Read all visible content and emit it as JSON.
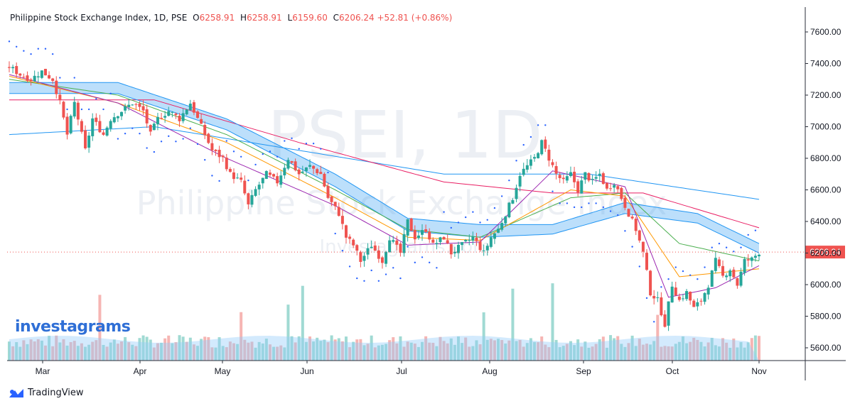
{
  "header": {
    "symbol": "Philippine Stock Exchange Index, 1D, PSE",
    "open_label": "O",
    "open": "6258.91",
    "high_label": "H",
    "high": "6258.91",
    "low_label": "L",
    "low": "6159.60",
    "close_label": "C",
    "close": "6206.24",
    "change": "+52.81 (+0.86%)"
  },
  "watermark": {
    "big": "PSEI, 1D",
    "mid": "Philippine Stock Exchange Index",
    "small": "Investagrams.com"
  },
  "brand": {
    "tradingview": "TradingView",
    "investagrams": "investagrams"
  },
  "colors": {
    "up": "#26a69a",
    "down": "#ef5350",
    "band": "#2196f3",
    "grid": "#f0f3fa"
  },
  "chart_data": {
    "type": "candlestick",
    "y_axis": {
      "min": 5500,
      "max": 7700,
      "ticks": [
        5600,
        5800,
        6000,
        6200,
        6400,
        6600,
        6800,
        7000,
        7200,
        7400,
        7600
      ],
      "position": "right"
    },
    "x_axis": {
      "labels": [
        "Mar",
        "Apr",
        "May",
        "Jun",
        "Jul",
        "Aug",
        "Sep",
        "Oct",
        "Nov"
      ]
    },
    "last_price": "6206.24",
    "close_anchors": [
      [
        0,
        7380
      ],
      [
        3,
        7330
      ],
      [
        6,
        7300
      ],
      [
        9,
        7350
      ],
      [
        12,
        7300
      ],
      [
        14,
        7150
      ],
      [
        16,
        6950
      ],
      [
        18,
        7150
      ],
      [
        19,
        7050
      ],
      [
        21,
        6850
      ],
      [
        23,
        7050
      ],
      [
        26,
        6950
      ],
      [
        28,
        7050
      ],
      [
        31,
        7100
      ],
      [
        34,
        7150
      ],
      [
        37,
        7100
      ],
      [
        39,
        6950
      ],
      [
        41,
        7050
      ],
      [
        44,
        7100
      ],
      [
        47,
        7050
      ],
      [
        50,
        7150
      ],
      [
        53,
        7000
      ],
      [
        56,
        6850
      ],
      [
        59,
        6800
      ],
      [
        61,
        6700
      ],
      [
        64,
        6650
      ],
      [
        66,
        6500
      ],
      [
        68,
        6600
      ],
      [
        71,
        6700
      ],
      [
        74,
        6650
      ],
      [
        77,
        6800
      ],
      [
        80,
        6700
      ],
      [
        83,
        6750
      ],
      [
        86,
        6700
      ],
      [
        88,
        6550
      ],
      [
        91,
        6450
      ],
      [
        93,
        6300
      ],
      [
        95,
        6250
      ],
      [
        97,
        6150
      ],
      [
        100,
        6250
      ],
      [
        103,
        6150
      ],
      [
        105,
        6300
      ],
      [
        108,
        6200
      ],
      [
        110,
        6400
      ],
      [
        112,
        6300
      ],
      [
        115,
        6350
      ],
      [
        117,
        6250
      ],
      [
        120,
        6300
      ],
      [
        122,
        6200
      ],
      [
        125,
        6250
      ],
      [
        128,
        6300
      ],
      [
        131,
        6200
      ],
      [
        133,
        6300
      ],
      [
        135,
        6350
      ],
      [
        137,
        6450
      ],
      [
        139,
        6550
      ],
      [
        141,
        6700
      ],
      [
        143,
        6750
      ],
      [
        145,
        6800
      ],
      [
        147,
        6900
      ],
      [
        149,
        6800
      ],
      [
        151,
        6700
      ],
      [
        153,
        6650
      ],
      [
        155,
        6700
      ],
      [
        157,
        6600
      ],
      [
        159,
        6700
      ],
      [
        161,
        6650
      ],
      [
        163,
        6700
      ],
      [
        165,
        6600
      ],
      [
        167,
        6650
      ],
      [
        169,
        6550
      ],
      [
        171,
        6450
      ],
      [
        173,
        6350
      ],
      [
        175,
        6200
      ],
      [
        177,
        5950
      ],
      [
        179,
        5900
      ],
      [
        181,
        5750
      ],
      [
        183,
        6000
      ],
      [
        185,
        5900
      ],
      [
        187,
        5950
      ],
      [
        189,
        5850
      ],
      [
        191,
        5900
      ],
      [
        193,
        6000
      ],
      [
        195,
        6150
      ],
      [
        197,
        6050
      ],
      [
        199,
        6100
      ],
      [
        201,
        6000
      ],
      [
        203,
        6150
      ],
      [
        205,
        6160
      ],
      [
        207,
        6206
      ]
    ],
    "moving_averages": [
      {
        "color": "#2196f3",
        "anchors": [
          [
            0,
            6950
          ],
          [
            40,
            7000
          ],
          [
            80,
            6850
          ],
          [
            120,
            6700
          ],
          [
            160,
            6700
          ],
          [
            207,
            6540
          ]
        ]
      },
      {
        "color": "#e91e63",
        "anchors": [
          [
            0,
            7170
          ],
          [
            40,
            7170
          ],
          [
            80,
            6900
          ],
          [
            120,
            6650
          ],
          [
            150,
            6580
          ],
          [
            175,
            6580
          ],
          [
            207,
            6360
          ]
        ]
      },
      {
        "color": "#2196f3",
        "anchors": [
          [
            0,
            7280
          ],
          [
            30,
            7280
          ],
          [
            60,
            7050
          ],
          [
            90,
            6700
          ],
          [
            110,
            6420
          ],
          [
            130,
            6380
          ],
          [
            150,
            6380
          ],
          [
            170,
            6520
          ],
          [
            190,
            6450
          ],
          [
            207,
            6260
          ]
        ]
      },
      {
        "color": "#2196f3",
        "anchors": [
          [
            0,
            7210
          ],
          [
            30,
            7210
          ],
          [
            60,
            6980
          ],
          [
            90,
            6620
          ],
          [
            110,
            6340
          ],
          [
            130,
            6300
          ],
          [
            150,
            6320
          ],
          [
            170,
            6450
          ],
          [
            190,
            6390
          ],
          [
            207,
            6200
          ]
        ]
      },
      {
        "color": "#4caf50",
        "anchors": [
          [
            0,
            7300
          ],
          [
            30,
            7200
          ],
          [
            60,
            6950
          ],
          [
            90,
            6600
          ],
          [
            110,
            6350
          ],
          [
            130,
            6300
          ],
          [
            155,
            6550
          ],
          [
            170,
            6580
          ],
          [
            185,
            6260
          ],
          [
            207,
            6150
          ]
        ]
      },
      {
        "color": "#ff9800",
        "anchors": [
          [
            0,
            7320
          ],
          [
            30,
            7150
          ],
          [
            60,
            6900
          ],
          [
            90,
            6550
          ],
          [
            110,
            6300
          ],
          [
            130,
            6280
          ],
          [
            155,
            6600
          ],
          [
            170,
            6560
          ],
          [
            185,
            6050
          ],
          [
            207,
            6100
          ]
        ]
      },
      {
        "color": "#9c27b0",
        "anchors": [
          [
            0,
            7330
          ],
          [
            30,
            7150
          ],
          [
            60,
            6800
          ],
          [
            90,
            6500
          ],
          [
            110,
            6250
          ],
          [
            130,
            6270
          ],
          [
            150,
            6720
          ],
          [
            170,
            6620
          ],
          [
            182,
            5920
          ],
          [
            195,
            5980
          ],
          [
            207,
            6120
          ]
        ]
      }
    ]
  }
}
